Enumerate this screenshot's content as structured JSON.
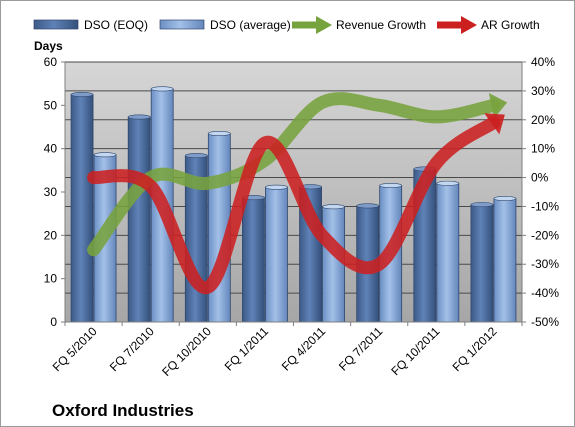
{
  "company_title": "Oxford Industries",
  "chart_data": {
    "type": "bar",
    "categories": [
      "FQ 5/2010",
      "FQ 7/2010",
      "FQ 10/2010",
      "FQ 1/2011",
      "FQ 4/2011",
      "FQ 7/2011",
      "FQ 10/2011",
      "FQ 1/2012"
    ],
    "series": [
      {
        "name": "DSO (EOQ)",
        "kind": "bar",
        "axis": "left",
        "color": "#4f6e9e",
        "values": [
          52.5,
          47.3,
          38.4,
          28.7,
          31.2,
          26.8,
          35.3,
          27.1
        ]
      },
      {
        "name": "DSO (average)",
        "kind": "bar",
        "axis": "left",
        "color": "#87a7d6",
        "values": [
          38.6,
          53.8,
          43.5,
          31.1,
          26.6,
          31.5,
          32.0,
          28.5
        ]
      },
      {
        "name": "Revenue Growth",
        "kind": "line",
        "axis": "right",
        "unit": "%",
        "color": "#77a33e",
        "values": [
          -25,
          0,
          -2,
          6,
          26,
          25,
          21,
          25
        ]
      },
      {
        "name": "AR Growth",
        "kind": "line",
        "axis": "right",
        "unit": "%",
        "color": "#cc2020",
        "values": [
          0,
          -3,
          -38,
          12,
          -20,
          -30,
          5,
          19
        ]
      }
    ],
    "ylabel": "Days",
    "ylim": [
      0,
      60
    ],
    "yticks": [
      0,
      10,
      20,
      30,
      40,
      50,
      60
    ],
    "y2lim": [
      -50,
      40
    ],
    "y2ticks": [
      "-50%",
      "-40%",
      "-30%",
      "-20%",
      "-10%",
      "0%",
      "10%",
      "20%",
      "30%",
      "40%"
    ],
    "grid": true,
    "legend": "top"
  }
}
